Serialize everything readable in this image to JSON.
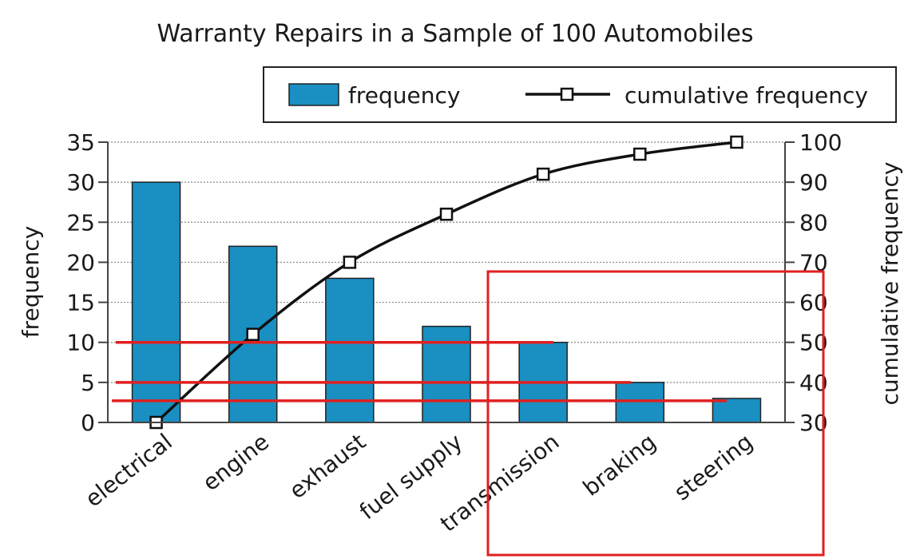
{
  "chart_data": {
    "type": "bar",
    "title": "Warranty Repairs in a Sample of 100 Automobiles",
    "xlabel": "",
    "ylabel": "frequency",
    "y2label": "cumulative frequency",
    "categories": [
      "electrical",
      "engine",
      "exhaust",
      "fuel supply",
      "transmission",
      "braking",
      "steering"
    ],
    "series": [
      {
        "name": "frequency",
        "type": "bar",
        "axis": "left",
        "values": [
          30,
          22,
          18,
          12,
          10,
          5,
          3
        ]
      },
      {
        "name": "cumulative frequency",
        "type": "line",
        "axis": "right",
        "values": [
          30,
          52,
          70,
          82,
          92,
          97,
          100
        ]
      }
    ],
    "ylim": [
      0,
      35
    ],
    "y2lim": [
      30,
      100
    ],
    "yticks": [
      "0",
      "5",
      "10",
      "15",
      "20",
      "25",
      "30",
      "35"
    ],
    "y2ticks": [
      "30",
      "40",
      "50",
      "60",
      "70",
      "80",
      "90",
      "100"
    ],
    "grid": true,
    "legend": "top-right",
    "colors": {
      "bar": "#1a8fc2",
      "bar_edge": "#222222",
      "line": "#111111",
      "annotation": "#e02020",
      "grid": "#888888"
    },
    "annotations": [
      {
        "type": "reference-line",
        "y": 10
      },
      {
        "type": "reference-line",
        "y": 5
      },
      {
        "type": "reference-line",
        "y": 2.7
      },
      {
        "type": "highlight-box",
        "categories": [
          "transmission",
          "braking",
          "steering"
        ]
      }
    ]
  }
}
